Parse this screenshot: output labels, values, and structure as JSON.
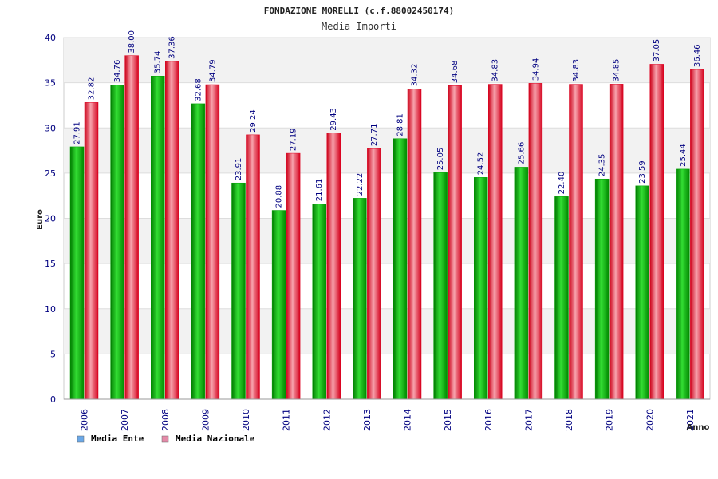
{
  "chart_data": {
    "type": "bar",
    "title": "FONDAZIONE MORELLI (c.f.88002450174)",
    "subtitle": "Media Importi",
    "xlabel": "Anno",
    "ylabel": "Euro",
    "ylim": [
      0,
      40
    ],
    "yticks": [
      0,
      5,
      10,
      15,
      20,
      25,
      30,
      35,
      40
    ],
    "grid": true,
    "legend_position": "bottom-left",
    "categories": [
      "2006",
      "2007",
      "2008",
      "2009",
      "2010",
      "2011",
      "2012",
      "2013",
      "2014",
      "2015",
      "2016",
      "2017",
      "2018",
      "2019",
      "2020",
      "2021"
    ],
    "series": [
      {
        "name": "Media Ente",
        "color": "#00a000",
        "legend_color": "#6aa8e8",
        "values": [
          27.91,
          34.76,
          35.74,
          32.68,
          23.91,
          20.88,
          21.61,
          22.22,
          28.81,
          25.05,
          24.52,
          25.66,
          22.4,
          24.35,
          23.59,
          25.44
        ],
        "labels": [
          "27.91",
          "34.76",
          "35.74",
          "32.68",
          "23.91",
          "20.88",
          "21.61",
          "22.22",
          "28.81",
          "25.05",
          "24.52",
          "25.66",
          "22.40",
          "24.35",
          "23.59",
          "25.44"
        ]
      },
      {
        "name": "Media Nazionale",
        "color": "#e00020",
        "legend_color": "#e48aa8",
        "values": [
          32.82,
          38.0,
          37.36,
          34.79,
          29.24,
          27.19,
          29.43,
          27.71,
          34.32,
          34.68,
          34.83,
          34.94,
          34.83,
          34.85,
          37.05,
          36.46
        ],
        "labels": [
          "32.82",
          "38.00",
          "37.36",
          "34.79",
          "29.24",
          "27.19",
          "29.43",
          "27.71",
          "34.32",
          "34.68",
          "34.83",
          "34.94",
          "34.83",
          "34.85",
          "37.05",
          "36.46"
        ]
      }
    ]
  }
}
